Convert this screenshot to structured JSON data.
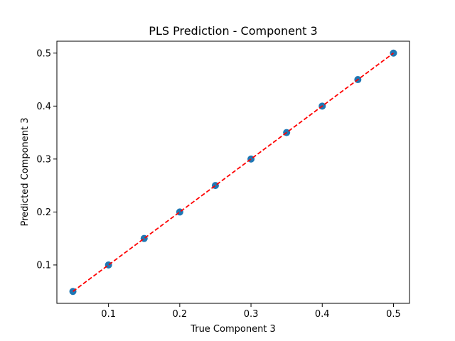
{
  "chart_data": {
    "type": "scatter",
    "title": "PLS Prediction - Component 3",
    "xlabel": "True Component 3",
    "ylabel": "Predicted Component 3",
    "xlim": [
      0.0275,
      0.5225
    ],
    "ylim": [
      0.0275,
      0.5225
    ],
    "xticks": [
      0.1,
      0.2,
      0.3,
      0.4,
      0.5
    ],
    "yticks": [
      0.1,
      0.2,
      0.3,
      0.4,
      0.5
    ],
    "xtick_labels": [
      "0.1",
      "0.2",
      "0.3",
      "0.4",
      "0.5"
    ],
    "ytick_labels": [
      "0.1",
      "0.2",
      "0.3",
      "0.4",
      "0.5"
    ],
    "grid": false,
    "series": [
      {
        "type": "scatter",
        "x": [
          0.05,
          0.1,
          0.15,
          0.2,
          0.25,
          0.3,
          0.35,
          0.4,
          0.45,
          0.5
        ],
        "y": [
          0.05,
          0.1,
          0.15,
          0.2,
          0.25,
          0.3,
          0.35,
          0.4,
          0.45,
          0.5
        ],
        "color": "#1f77b4"
      },
      {
        "type": "line",
        "style": "dashed",
        "x": [
          0.05,
          0.5
        ],
        "y": [
          0.05,
          0.5
        ],
        "color": "#ff0000"
      }
    ]
  }
}
